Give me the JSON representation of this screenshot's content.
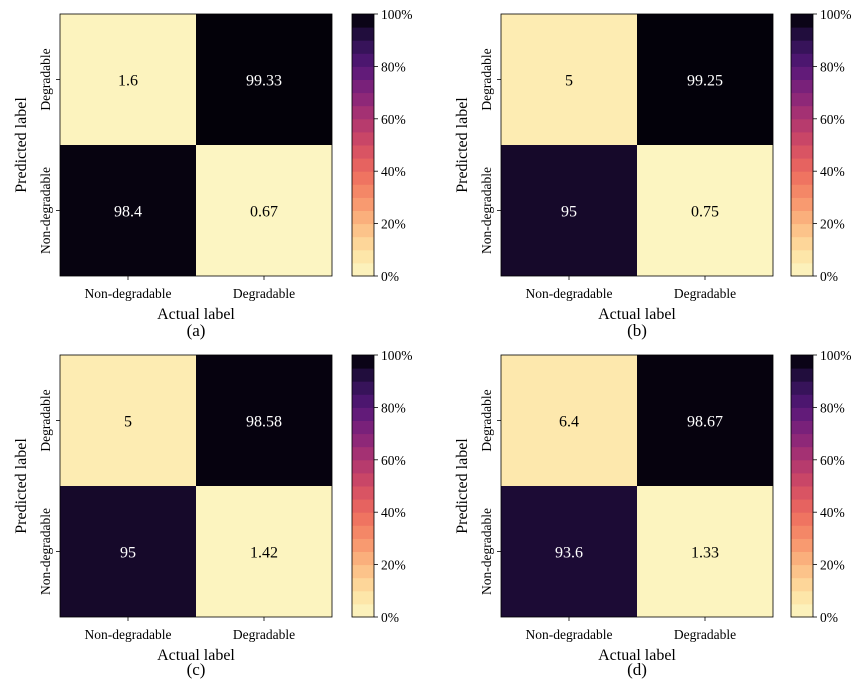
{
  "chart_data": [
    {
      "type": "heatmap",
      "caption": "(a)",
      "xlabel": "Actual label",
      "ylabel": "Predicted label",
      "x_categories": [
        "Non-degradable",
        "Degradable"
      ],
      "y_categories": [
        "Degradable",
        "Non-degradable"
      ],
      "values": [
        [
          1.6,
          99.33
        ],
        [
          98.4,
          0.67
        ]
      ],
      "colorbar": {
        "range": [
          0,
          100
        ],
        "ticks": [
          "0%",
          "20%",
          "40%",
          "60%",
          "80%",
          "100%"
        ]
      }
    },
    {
      "type": "heatmap",
      "caption": "(b)",
      "xlabel": "Actual label",
      "ylabel": "Predicted label",
      "x_categories": [
        "Non-degradable",
        "Degradable"
      ],
      "y_categories": [
        "Degradable",
        "Non-degradable"
      ],
      "values": [
        [
          5,
          99.25
        ],
        [
          95,
          0.75
        ]
      ],
      "colorbar": {
        "range": [
          0,
          100
        ],
        "ticks": [
          "0%",
          "20%",
          "40%",
          "60%",
          "80%",
          "100%"
        ]
      }
    },
    {
      "type": "heatmap",
      "caption": "(c)",
      "xlabel": "Actual label",
      "ylabel": "Predicted label",
      "x_categories": [
        "Non-degradable",
        "Degradable"
      ],
      "y_categories": [
        "Degradable",
        "Non-degradable"
      ],
      "values": [
        [
          5,
          98.58
        ],
        [
          95,
          1.42
        ]
      ],
      "colorbar": {
        "range": [
          0,
          100
        ],
        "ticks": [
          "0%",
          "20%",
          "40%",
          "60%",
          "80%",
          "100%"
        ]
      }
    },
    {
      "type": "heatmap",
      "caption": "(d)",
      "xlabel": "Actual label",
      "ylabel": "Predicted label",
      "x_categories": [
        "Non-degradable",
        "Degradable"
      ],
      "y_categories": [
        "Degradable",
        "Non-degradable"
      ],
      "values": [
        [
          6.4,
          98.67
        ],
        [
          93.6,
          1.33
        ]
      ],
      "colorbar": {
        "range": [
          0,
          100
        ],
        "ticks": [
          "0%",
          "20%",
          "40%",
          "60%",
          "80%",
          "100%"
        ]
      }
    }
  ],
  "colormap": {
    "name": "magma_r",
    "stops": [
      [
        0.0,
        "#fcf7c4"
      ],
      [
        0.1,
        "#fde0a0"
      ],
      [
        0.2,
        "#fbb982"
      ],
      [
        0.3,
        "#f7906a"
      ],
      [
        0.4,
        "#ec6a5e"
      ],
      [
        0.5,
        "#d24c64"
      ],
      [
        0.6,
        "#ae3570"
      ],
      [
        0.7,
        "#84247a"
      ],
      [
        0.8,
        "#571879"
      ],
      [
        0.9,
        "#2c1150"
      ],
      [
        1.0,
        "#000004"
      ]
    ],
    "text_light": "#ffffff",
    "text_dark": "#000000"
  }
}
